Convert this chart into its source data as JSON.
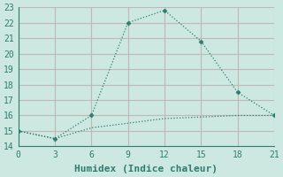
{
  "xlabel": "Humidex (Indice chaleur)",
  "line1_x": [
    0,
    3,
    6,
    9,
    12,
    15,
    18,
    21
  ],
  "line1_y": [
    15,
    14.5,
    16,
    22,
    22.8,
    20.8,
    17.5,
    16
  ],
  "line2_x": [
    0,
    3,
    6,
    9,
    12,
    15,
    18,
    21
  ],
  "line2_y": [
    15,
    14.5,
    15.2,
    15.5,
    15.8,
    15.9,
    16.0,
    16
  ],
  "line_color": "#2e7d6e",
  "bg_color": "#cce8e0",
  "grid_color": "#c0b8b8",
  "xlim": [
    0,
    21
  ],
  "ylim": [
    14,
    23
  ],
  "xticks": [
    0,
    3,
    6,
    9,
    12,
    15,
    18,
    21
  ],
  "yticks": [
    14,
    15,
    16,
    17,
    18,
    19,
    20,
    21,
    22,
    23
  ],
  "tick_fontsize": 7,
  "xlabel_fontsize": 8
}
